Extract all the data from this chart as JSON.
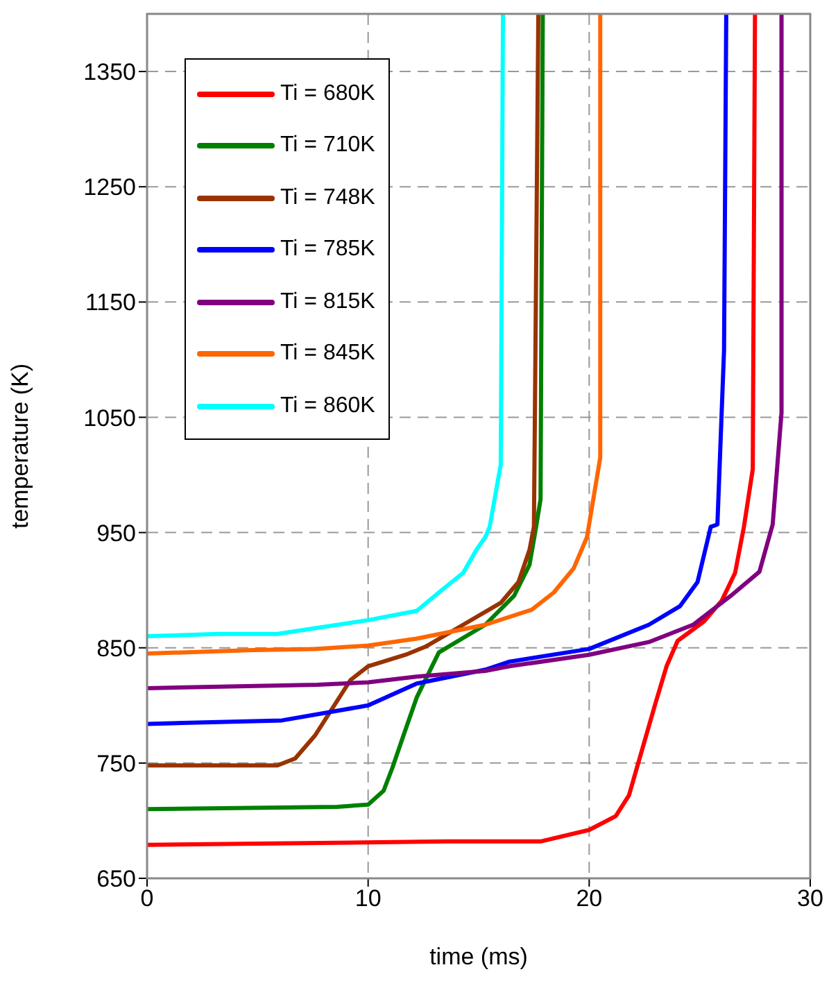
{
  "chart_data": {
    "type": "line",
    "xlabel": "time (ms)",
    "ylabel": "temperature (K)",
    "xlim": [
      0,
      30
    ],
    "xticks": [
      0,
      10,
      20,
      30
    ],
    "ylim": [
      650,
      1400
    ],
    "yticks": [
      650,
      750,
      850,
      950,
      1050,
      1150,
      1250,
      1350
    ],
    "grid": true,
    "legend": "top left",
    "marker": "none",
    "line_style": "solid",
    "series": [
      {
        "name": "Ti = 680K",
        "color": "#ff0000",
        "x": [
          0,
          13.6,
          17.8,
          20,
          21.2,
          21.8,
          22.4,
          23.0,
          23.5,
          24.0,
          25.2,
          26.0,
          26.6,
          27.0,
          27.4,
          27.5
        ],
        "values": [
          679,
          682,
          682,
          692,
          704,
          722,
          762,
          802,
          834,
          856,
          873,
          891,
          915,
          955,
          1005,
          1400
        ]
      },
      {
        "name": "Ti = 710K",
        "color": "#008000",
        "x": [
          0,
          8.6,
          10,
          10.7,
          11.1,
          11.6,
          12.2,
          13.2,
          15.3,
          16.6,
          17.3,
          17.6,
          17.8,
          17.9
        ],
        "values": [
          710,
          712,
          714,
          726,
          746,
          774,
          807,
          846,
          870,
          895,
          922,
          955,
          979,
          1400
        ]
      },
      {
        "name": "Ti = 748K",
        "color": "#993300",
        "x": [
          0,
          5.9,
          6.7,
          7.6,
          8.4,
          9.2,
          10,
          11.7,
          12.6,
          14.3,
          16.0,
          16.8,
          17.3,
          17.5,
          17.7
        ],
        "values": [
          748,
          748,
          754,
          774,
          798,
          822,
          834,
          844,
          851,
          870,
          889,
          907,
          935,
          955,
          1400
        ]
      },
      {
        "name": "Ti = 785K",
        "color": "#0000ff",
        "x": [
          0,
          6.1,
          10,
          12.2,
          15.3,
          16.4,
          20,
          22.7,
          24.1,
          24.9,
          25.5,
          25.8,
          26.1,
          26.2
        ],
        "values": [
          784,
          787,
          800,
          819,
          831,
          838,
          849,
          870,
          886,
          907,
          955,
          957,
          1108,
          1400
        ]
      },
      {
        "name": "Ti = 815K",
        "color": "#800080",
        "x": [
          0,
          7.7,
          10,
          12.2,
          15.3,
          16.4,
          20,
          22.7,
          24.7,
          26.4,
          27.7,
          28.3,
          28.7,
          28.7
        ],
        "values": [
          815,
          818,
          820,
          825,
          830,
          834,
          844,
          855,
          870,
          895,
          916,
          957,
          1054,
          1400
        ]
      },
      {
        "name": "Ti = 845K",
        "color": "#ff6600",
        "x": [
          0,
          4.8,
          7.6,
          10,
          12.2,
          15.3,
          17.4,
          18.4,
          19.3,
          19.9,
          20.5,
          20.5
        ],
        "values": [
          845,
          848,
          849,
          852,
          858,
          870,
          883,
          898,
          919,
          946,
          1015,
          1400
        ]
      },
      {
        "name": "Ti = 860K",
        "color": "#00ffff",
        "x": [
          0,
          3.2,
          5.9,
          10,
          12.2,
          13.2,
          14.3,
          14.9,
          15.3,
          15.5,
          16.0,
          16.1
        ],
        "values": [
          860,
          862,
          862,
          874,
          882,
          898,
          915,
          935,
          946,
          955,
          1009,
          1400
        ]
      }
    ]
  }
}
